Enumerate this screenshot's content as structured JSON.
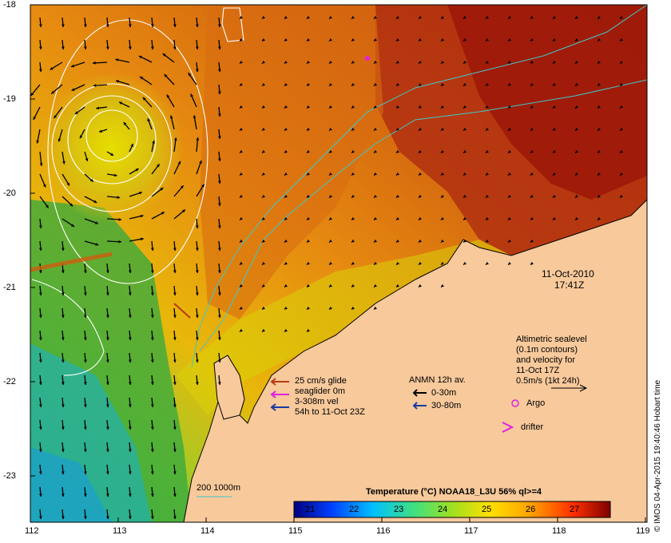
{
  "map": {
    "lat_ticks": [
      "-18",
      "-19",
      "-20",
      "-21",
      "-22",
      "-23"
    ],
    "lon_ticks": [
      "112",
      "113",
      "114",
      "115",
      "116",
      "117",
      "118",
      "119"
    ],
    "date": "11-Oct-2010",
    "time": "17:41Z",
    "altimetry_note": [
      "Altimetric sealevel",
      "(0.1m contours)",
      "and velocity for",
      "11-Oct 17Z",
      "0.5m/s (1kt 24h)"
    ],
    "legend_argo": "Argo",
    "legend_drifter": "drifter",
    "anmn_title": "ANMN 12h av.",
    "anmn_items": [
      "0-30m",
      "30-80m"
    ],
    "glider_legend": [
      "25 cm/s glide",
      "seaglider 0m",
      "3-308m vel",
      "54h to 11-Oct 23Z"
    ],
    "bathy_label": "200  1000m",
    "colorbar_title": "Temperature (°C) NOAA18_L3U 56% ql>=4",
    "colorbar_ticks": [
      "21",
      "22",
      "23",
      "24",
      "25",
      "26",
      "27"
    ],
    "credit": "© IMOS 04-Apr-2015 19:40:46 Hobart time",
    "colors": {
      "land": "#f7c99b",
      "arrow": "#000000",
      "argo": "#e020e0",
      "drifter": "#e020e0",
      "glider_a": "#b83a16",
      "glider_b": "#e020e0",
      "glider_c": "#1a3aa0",
      "anmn_deep": "#1a3aa0",
      "isobath": "#3ec9c9"
    }
  }
}
